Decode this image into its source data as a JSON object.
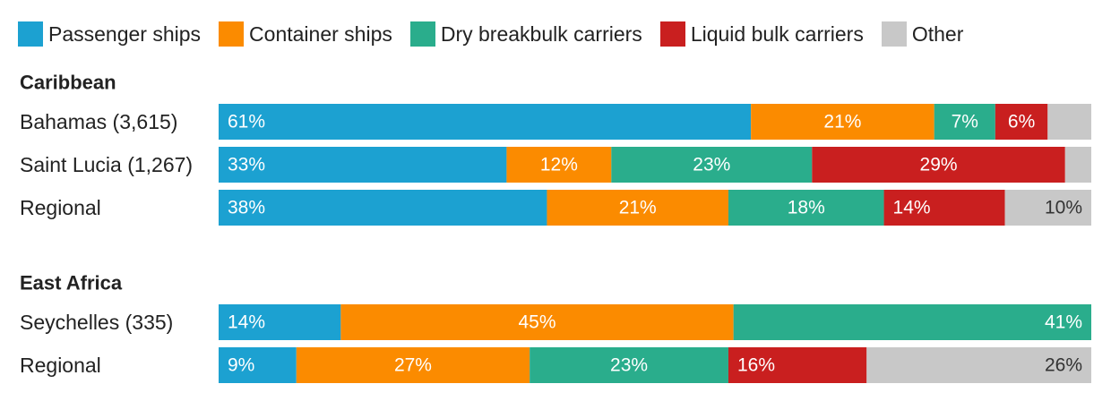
{
  "chart_data": {
    "type": "bar",
    "orientation": "horizontal",
    "stacked": true,
    "normalized": true,
    "grid": false,
    "legend": "top-left",
    "series": [
      {
        "name": "Passenger ships",
        "color": "#1ca1d1"
      },
      {
        "name": "Container ships",
        "color": "#fb8b00"
      },
      {
        "name": "Dry breakbulk carriers",
        "color": "#2aad8c"
      },
      {
        "name": "Liquid bulk carriers",
        "color": "#c91f1f"
      },
      {
        "name": "Other",
        "color": "#c8c8c8"
      }
    ],
    "groups": [
      {
        "title": "Caribbean",
        "rows": [
          {
            "label": "Bahamas (3,615)",
            "values": [
              61,
              21,
              7,
              6,
              5
            ],
            "labels": [
              "61%",
              "21%",
              "7%",
              "6%",
              ""
            ]
          },
          {
            "label": "Saint Lucia (1,267)",
            "values": [
              33,
              12,
              23,
              29,
              3
            ],
            "labels": [
              "33%",
              "12%",
              "23%",
              "29%",
              ""
            ]
          },
          {
            "label": "Regional",
            "values": [
              38,
              21,
              18,
              14,
              10
            ],
            "labels": [
              "38%",
              "21%",
              "18%",
              "14%",
              "10%"
            ]
          }
        ]
      },
      {
        "title": "East Africa",
        "rows": [
          {
            "label": "Seychelles (335)",
            "values": [
              14,
              45,
              41,
              0,
              0
            ],
            "labels": [
              "14%",
              "45%",
              "41%",
              "",
              ""
            ]
          },
          {
            "label": "Regional",
            "values": [
              9,
              27,
              23,
              16,
              26
            ],
            "labels": [
              "9%",
              "27%",
              "23%",
              "16%",
              "26%"
            ]
          }
        ]
      }
    ]
  }
}
